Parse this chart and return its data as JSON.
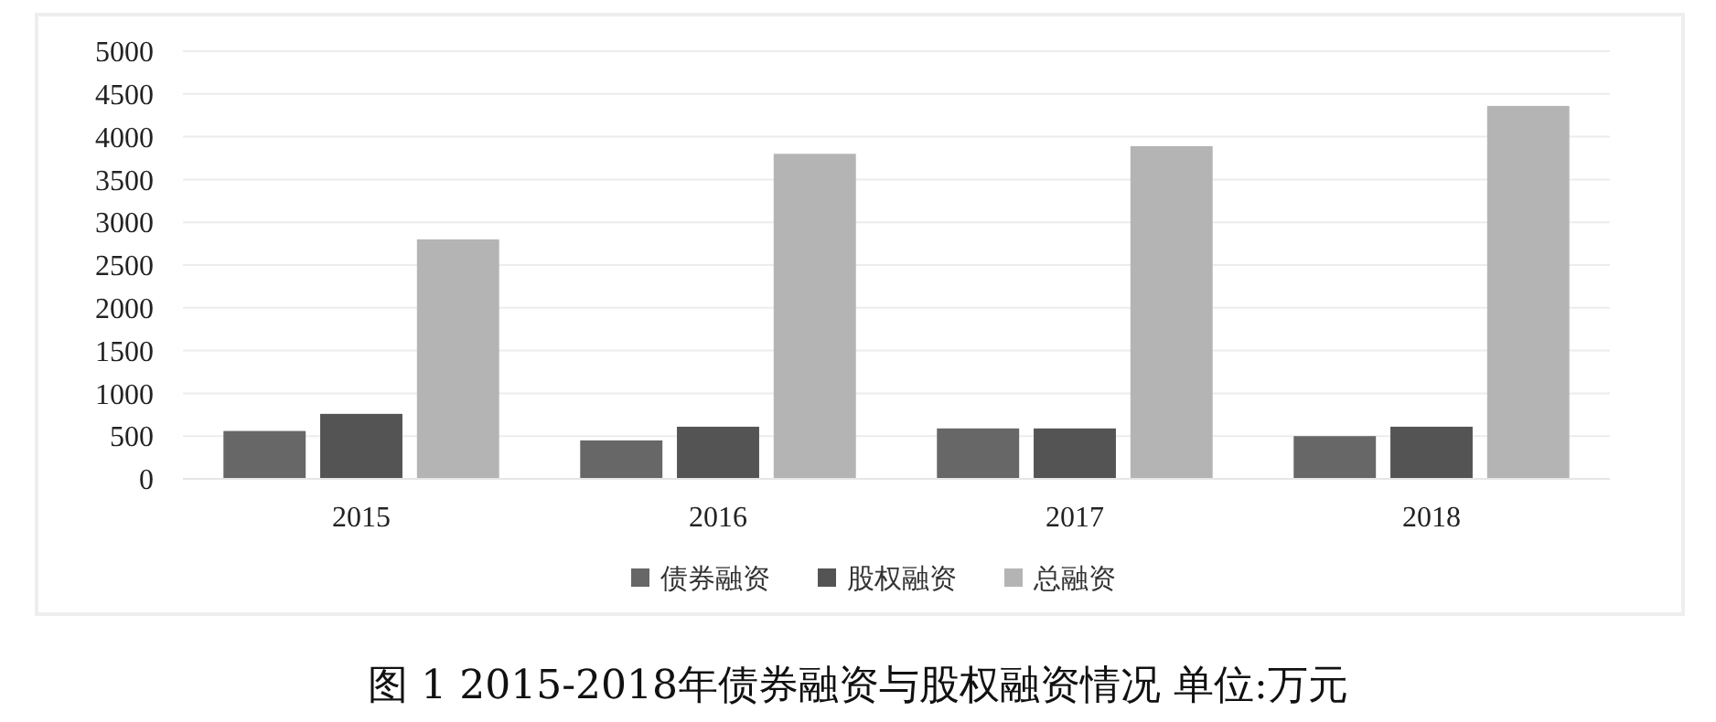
{
  "chart_data": {
    "type": "bar",
    "categories": [
      "2015",
      "2016",
      "2017",
      "2018"
    ],
    "series": [
      {
        "name": "债券融资",
        "color": "#676767",
        "values": [
          560,
          450,
          590,
          500
        ]
      },
      {
        "name": "股权融资",
        "color": "#545454",
        "values": [
          760,
          610,
          590,
          610
        ]
      },
      {
        "name": "总融资",
        "color": "#b4b4b4",
        "values": [
          2800,
          3800,
          3890,
          4360
        ]
      }
    ],
    "ylim": [
      0,
      5000
    ],
    "yticks": [
      0,
      500,
      1000,
      1500,
      2000,
      2500,
      3000,
      3500,
      4000,
      4500,
      5000
    ],
    "grid": "y",
    "legend": "bottom",
    "annotations": [
      "图 1 2015-2018年债券融资与股权融资情况 单位:万元"
    ]
  }
}
